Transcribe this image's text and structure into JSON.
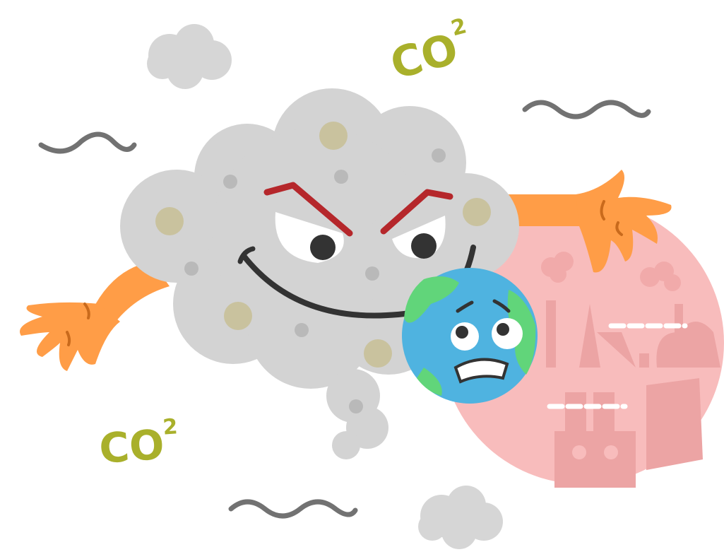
{
  "labels": [
    {
      "main": "CO",
      "sup": "2"
    },
    {
      "main": "CO",
      "sup": "2"
    }
  ]
}
